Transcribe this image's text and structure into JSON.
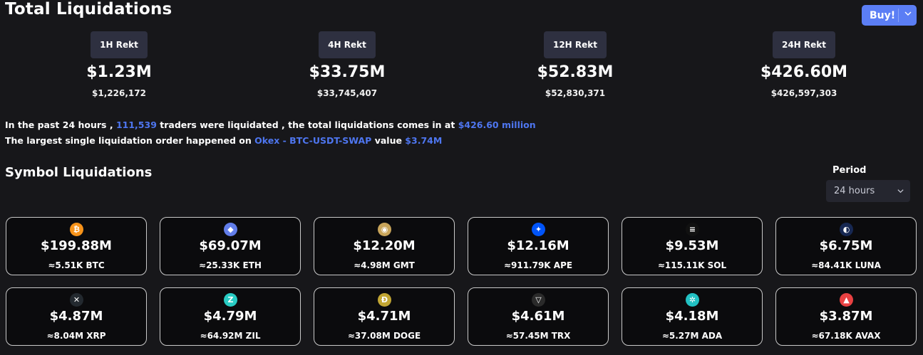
{
  "header": {
    "title": "Total Liquidations",
    "buy_label": "Buy!"
  },
  "stats": [
    {
      "label": "1H Rekt",
      "value": "$1.23M",
      "exact": "$1,226,172"
    },
    {
      "label": "4H Rekt",
      "value": "$33.75M",
      "exact": "$33,745,407"
    },
    {
      "label": "12H Rekt",
      "value": "$52.83M",
      "exact": "$52,830,371"
    },
    {
      "label": "24H Rekt",
      "value": "$426.60M",
      "exact": "$426,597,303"
    }
  ],
  "summary": {
    "l1_a": "In the past 24 hours , ",
    "traders": "111,539",
    "l1_b": " traders were liquidated , the total liquidations comes in at ",
    "total": "$426.60 million",
    "l2_a": "The largest single liquidation order happened on ",
    "largest_order": "Okex - BTC-USDT-SWAP",
    "l2_b": " value ",
    "largest_value": "$3.74M"
  },
  "symbols": {
    "title": "Symbol Liquidations",
    "period_label": "Period",
    "period_value": "24 hours",
    "cards": [
      {
        "icon": "bitcoin-icon",
        "icon_color": "#f7931a",
        "glyph": "₿",
        "amount": "$199.88M",
        "quantity": "≈5.51K BTC"
      },
      {
        "icon": "ethereum-icon",
        "icon_color": "#627eea",
        "glyph": "◆",
        "amount": "$69.07M",
        "quantity": "≈25.33K ETH"
      },
      {
        "icon": "gmt-icon",
        "icon_color": "#c9a55a",
        "glyph": "◉",
        "amount": "$12.20M",
        "quantity": "≈4.98M GMT"
      },
      {
        "icon": "ape-icon",
        "icon_color": "#0054f9",
        "glyph": "✦",
        "amount": "$12.16M",
        "quantity": "≈911.79K APE"
      },
      {
        "icon": "solana-icon",
        "icon_color": "#111111",
        "glyph": "≡",
        "amount": "$9.53M",
        "quantity": "≈115.11K SOL"
      },
      {
        "icon": "luna-icon",
        "icon_color": "#172852",
        "glyph": "◐",
        "amount": "$6.75M",
        "quantity": "≈84.41K LUNA"
      },
      {
        "icon": "xrp-icon",
        "icon_color": "#23292f",
        "glyph": "✕",
        "amount": "$4.87M",
        "quantity": "≈8.04M XRP"
      },
      {
        "icon": "zilliqa-icon",
        "icon_color": "#29ccc4",
        "glyph": "Z",
        "amount": "$4.79M",
        "quantity": "≈64.92M ZIL"
      },
      {
        "icon": "dogecoin-icon",
        "icon_color": "#c2a633",
        "glyph": "Ð",
        "amount": "$4.71M",
        "quantity": "≈37.08M DOGE"
      },
      {
        "icon": "tron-icon",
        "icon_color": "#2a2a2a",
        "glyph": "▽",
        "amount": "$4.61M",
        "quantity": "≈57.45M TRX"
      },
      {
        "icon": "cardano-icon",
        "icon_color": "#22c1c3",
        "glyph": "✲",
        "amount": "$4.18M",
        "quantity": "≈5.27M ADA"
      },
      {
        "icon": "avalanche-icon",
        "icon_color": "#e84142",
        "glyph": "▲",
        "amount": "$3.87M",
        "quantity": "≈67.18K AVAX"
      }
    ]
  }
}
